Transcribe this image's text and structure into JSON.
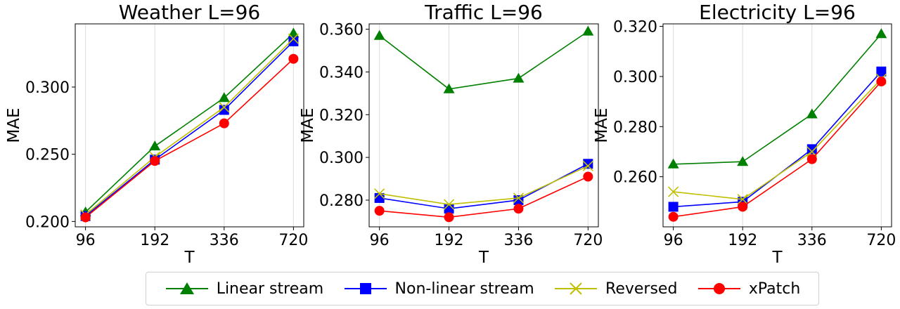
{
  "chart_data": [
    {
      "type": "line",
      "title": "Weather L=96",
      "xlabel": "T",
      "ylabel": "MAE",
      "categories": [
        "96",
        "192",
        "336",
        "720"
      ],
      "ylim": [
        0.196,
        0.347
      ],
      "yticks": [
        "0.200",
        "0.250",
        "0.300"
      ],
      "series": [
        {
          "name": "Linear stream",
          "values": [
            0.207,
            0.256,
            0.292,
            0.34
          ]
        },
        {
          "name": "Non-linear stream",
          "values": [
            0.204,
            0.246,
            0.283,
            0.334
          ]
        },
        {
          "name": "Reversed",
          "values": [
            0.205,
            0.248,
            0.285,
            0.336
          ]
        },
        {
          "name": "xPatch",
          "values": [
            0.203,
            0.245,
            0.273,
            0.321
          ]
        }
      ]
    },
    {
      "type": "line",
      "title": "Traffic L=96",
      "xlabel": "T",
      "ylabel": "MAE",
      "categories": [
        "96",
        "192",
        "336",
        "720"
      ],
      "ylim": [
        0.2675,
        0.3625
      ],
      "yticks": [
        "0.280",
        "0.300",
        "0.320",
        "0.340",
        "0.360"
      ],
      "series": [
        {
          "name": "Linear stream",
          "values": [
            0.357,
            0.332,
            0.337,
            0.359
          ]
        },
        {
          "name": "Non-linear stream",
          "values": [
            0.281,
            0.276,
            0.28,
            0.297
          ]
        },
        {
          "name": "Reversed",
          "values": [
            0.283,
            0.278,
            0.281,
            0.296
          ]
        },
        {
          "name": "xPatch",
          "values": [
            0.275,
            0.272,
            0.276,
            0.291
          ]
        }
      ]
    },
    {
      "type": "line",
      "title": "Electricity L=96",
      "xlabel": "T",
      "ylabel": "MAE",
      "categories": [
        "96",
        "192",
        "336",
        "720"
      ],
      "ylim": [
        0.24,
        0.321
      ],
      "yticks": [
        "0.260",
        "0.280",
        "0.300",
        "0.320"
      ],
      "series": [
        {
          "name": "Linear stream",
          "values": [
            0.265,
            0.266,
            0.285,
            0.317
          ]
        },
        {
          "name": "Non-linear stream",
          "values": [
            0.248,
            0.25,
            0.271,
            0.302
          ]
        },
        {
          "name": "Reversed",
          "values": [
            0.254,
            0.251,
            0.27,
            0.299
          ]
        },
        {
          "name": "xPatch",
          "values": [
            0.244,
            0.248,
            0.267,
            0.298
          ]
        }
      ]
    }
  ],
  "legend": {
    "position": "bottom-center",
    "items": [
      {
        "label": "Linear stream",
        "color": "#008000",
        "marker": "triangle"
      },
      {
        "label": "Non-linear stream",
        "color": "#0000ff",
        "marker": "square"
      },
      {
        "label": "Reversed",
        "color": "#bfbf00",
        "marker": "x"
      },
      {
        "label": "xPatch",
        "color": "#ff0000",
        "marker": "circle"
      }
    ]
  }
}
